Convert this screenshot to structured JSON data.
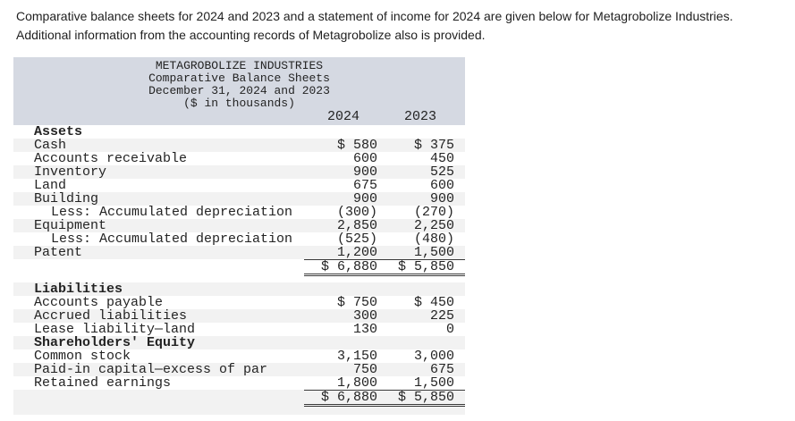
{
  "intro": "Comparative balance sheets for 2024 and 2023 and a statement of income for 2024 are given below for Metagrobolize Industries. Additional information from the accounting records of Metagrobolize also is provided.",
  "statement": {
    "title_lines": [
      "METAGROBOLIZE INDUSTRIES",
      "Comparative Balance Sheets",
      "December 31, 2024 and 2023",
      "($ in thousands)"
    ],
    "columns": [
      "2024",
      "2023"
    ],
    "colors": {
      "header_bg": "#d5d9e2",
      "stripe": "#f2f2f2",
      "line": "#3a3a3a"
    },
    "rows": [
      {
        "type": "section",
        "label": "Assets"
      },
      {
        "type": "item",
        "label": "Cash",
        "v2024": "$ 580",
        "v2023": "$ 375",
        "shade": true
      },
      {
        "type": "item",
        "label": "Accounts receivable",
        "v2024": "600",
        "v2023": "450"
      },
      {
        "type": "item",
        "label": "Inventory",
        "v2024": "900",
        "v2023": "525",
        "shade": true
      },
      {
        "type": "item",
        "label": "Land",
        "v2024": "675",
        "v2023": "600"
      },
      {
        "type": "item",
        "label": "Building",
        "v2024": "900",
        "v2023": "900",
        "shade": true
      },
      {
        "type": "item",
        "label": "Less: Accumulated depreciation",
        "v2024": "(300)",
        "v2023": "(270)",
        "indent": true
      },
      {
        "type": "item",
        "label": "Equipment",
        "v2024": "2,850",
        "v2023": "2,250",
        "shade": true
      },
      {
        "type": "item",
        "label": "Less: Accumulated depreciation",
        "v2024": "(525)",
        "v2023": "(480)",
        "indent": true
      },
      {
        "type": "item",
        "label": "Patent",
        "v2024": "1,200",
        "v2023": "1,500",
        "shade": true
      },
      {
        "type": "total",
        "label": "",
        "v2024": "$ 6,880",
        "v2023": "$ 5,850"
      },
      {
        "type": "spacer"
      },
      {
        "type": "section",
        "label": "Liabilities",
        "shade": true
      },
      {
        "type": "item",
        "label": "Accounts payable",
        "v2024": "$ 750",
        "v2023": "$ 450"
      },
      {
        "type": "item",
        "label": "Accrued liabilities",
        "v2024": "300",
        "v2023": "225",
        "shade": true
      },
      {
        "type": "item",
        "label": "Lease liability—land",
        "v2024": "130",
        "v2023": "0"
      },
      {
        "type": "section",
        "label": "Shareholders' Equity",
        "shade": true
      },
      {
        "type": "item",
        "label": "Common stock",
        "v2024": "3,150",
        "v2023": "3,000"
      },
      {
        "type": "item",
        "label": "Paid-in capital—excess of par",
        "v2024": "750",
        "v2023": "675",
        "shade": true
      },
      {
        "type": "item",
        "label": "Retained earnings",
        "v2024": "1,800",
        "v2023": "1,500"
      },
      {
        "type": "total",
        "label": "",
        "v2024": "$ 6,880",
        "v2023": "$ 5,850",
        "shade": true
      },
      {
        "type": "strip"
      }
    ]
  }
}
